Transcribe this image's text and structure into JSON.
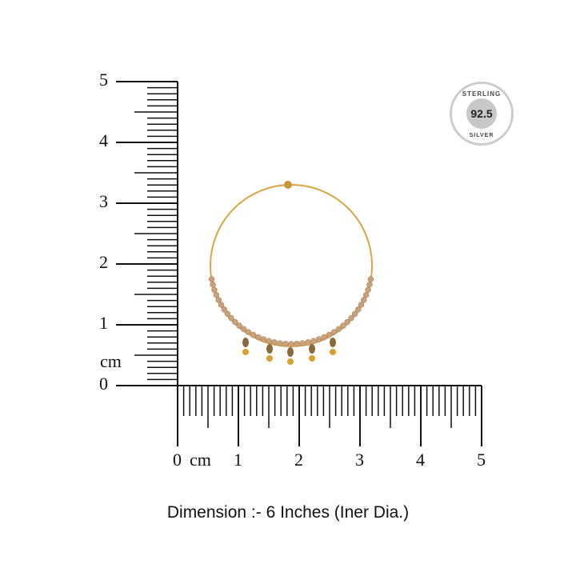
{
  "vertical_ruler": {
    "labels": [
      "0",
      "1",
      "2",
      "3",
      "4",
      "5"
    ],
    "unit": "cm"
  },
  "horizontal_ruler": {
    "labels": [
      "0",
      "1",
      "2",
      "3",
      "4",
      "5"
    ],
    "unit": "cm"
  },
  "badge": {
    "top_text": "STERLING",
    "value": "92.5",
    "bottom_text": "SILVER"
  },
  "caption": "Dimension :-  6 Inches (Iner Dia.)",
  "colors": {
    "ruler": "#111111",
    "hoop": "#d9a441",
    "beads": "#c9a27a",
    "badge": "#c8c8c8"
  }
}
